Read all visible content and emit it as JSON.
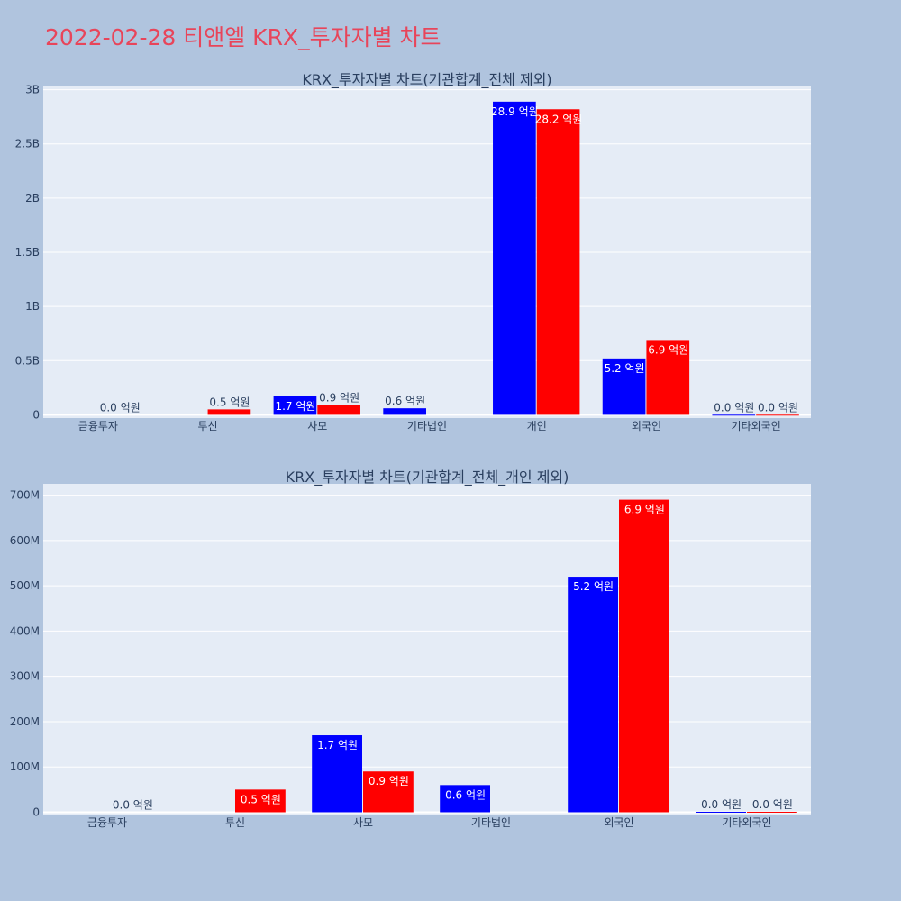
{
  "page": {
    "title": "2022-02-28 티앤엘 KRX_투자자별 차트"
  },
  "colors": {
    "background": "#b0c4de",
    "plot_background": "#e5ecf6",
    "title_color": "#e8455a",
    "series_buy": "#0000ff",
    "series_sell": "#ff0000",
    "text": "#2a3f5f"
  },
  "chart_data": [
    {
      "type": "bar",
      "title": "KRX_투자자별 차트(기관합계_전체 제외)",
      "categories": [
        "금융투자",
        "투신",
        "사모",
        "기타법인",
        "개인",
        "외국인",
        "기타외국인"
      ],
      "series": [
        {
          "color": "#0000ff",
          "values": [
            0,
            0,
            170000000,
            60000000,
            2890000000,
            520000000,
            1000000
          ],
          "labels": [
            "",
            "",
            "1.7 억원",
            "0.6 억원",
            "28.9 억원",
            "5.2 억원",
            "0.0 억원"
          ]
        },
        {
          "color": "#ff0000",
          "values": [
            0,
            50000000,
            90000000,
            0,
            2820000000,
            690000000,
            1000000
          ],
          "labels": [
            "0.0 억원",
            "0.5 억원",
            "0.9 억원",
            "",
            "28.2 억원",
            "6.9 억원",
            "0.0 억원"
          ]
        }
      ],
      "yticks": [
        0,
        500000000,
        1000000000,
        1500000000,
        2000000000,
        2500000000,
        3000000000
      ],
      "ytick_labels": [
        "0",
        "0.5B",
        "1B",
        "1.5B",
        "2B",
        "2.5B",
        "3B"
      ],
      "ylim": [
        -30000000,
        3030000000
      ],
      "grid": true
    },
    {
      "type": "bar",
      "title": "KRX_투자자별 차트(기관합계_전체_개인 제외)",
      "categories": [
        "금융투자",
        "투신",
        "사모",
        "기타법인",
        "외국인",
        "기타외국인"
      ],
      "series": [
        {
          "color": "#0000ff",
          "values": [
            0,
            0,
            170000000,
            60000000,
            520000000,
            1000000
          ],
          "labels": [
            "",
            "",
            "1.7 억원",
            "0.6 억원",
            "5.2 억원",
            "0.0 억원"
          ]
        },
        {
          "color": "#ff0000",
          "values": [
            0,
            50000000,
            90000000,
            0,
            690000000,
            1000000
          ],
          "labels": [
            "0.0 억원",
            "0.5 억원",
            "0.9 억원",
            "",
            "6.9 억원",
            "0.0 억원"
          ]
        }
      ],
      "yticks": [
        0,
        100000000,
        200000000,
        300000000,
        400000000,
        500000000,
        600000000,
        700000000
      ],
      "ytick_labels": [
        "0",
        "100M",
        "200M",
        "300M",
        "400M",
        "500M",
        "600M",
        "700M"
      ],
      "ylim": [
        -5000000,
        725000000
      ],
      "grid": true
    }
  ]
}
